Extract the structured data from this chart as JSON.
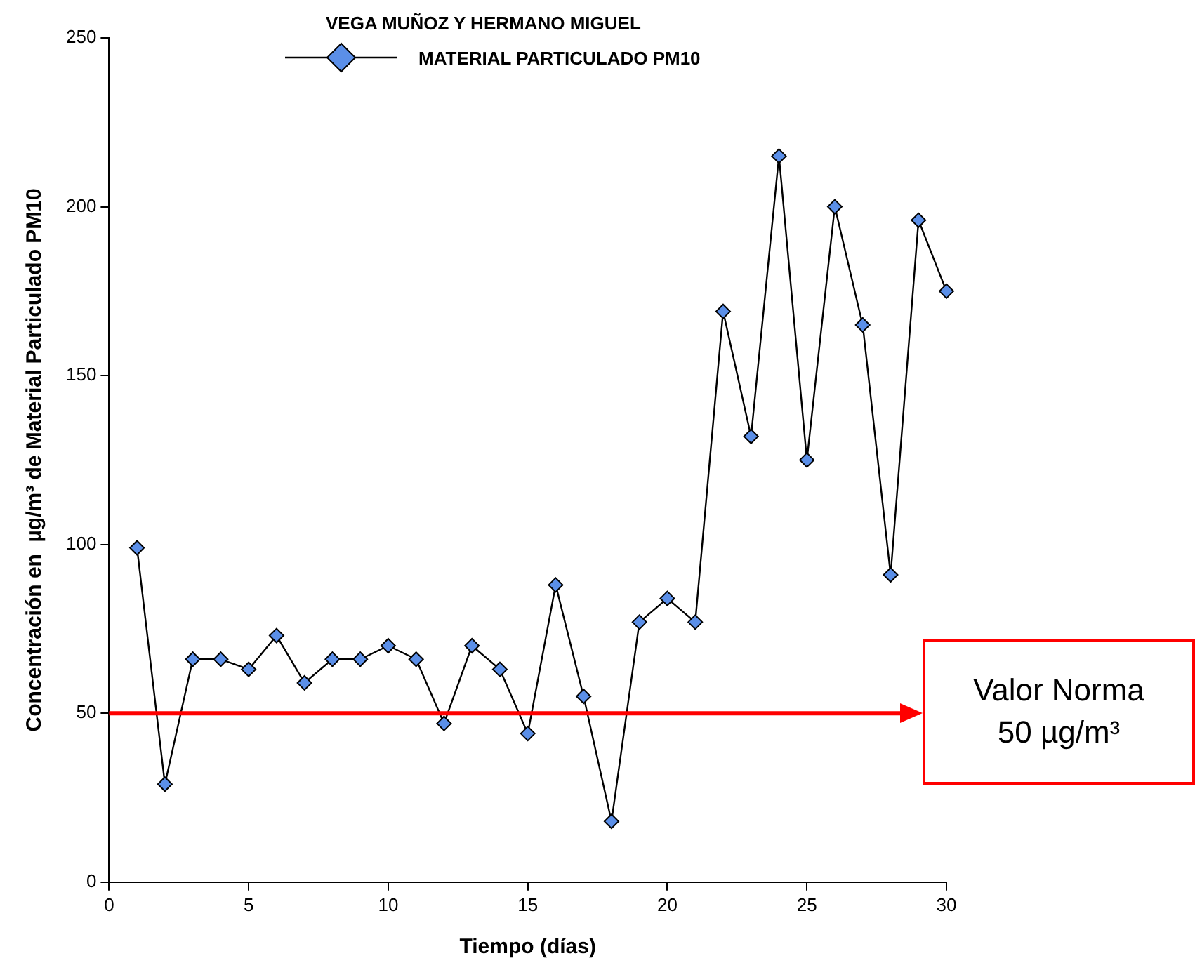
{
  "chart_data": {
    "type": "line",
    "title": "VEGA MUÑOZ Y  HERMANO MIGUEL",
    "xlabel": "Tiempo (días)",
    "ylabel": "Concentración en  µg/m³ de Material Particulado PM10",
    "x": [
      1,
      2,
      3,
      4,
      5,
      6,
      7,
      8,
      9,
      10,
      11,
      12,
      13,
      14,
      15,
      16,
      17,
      18,
      19,
      20,
      21,
      22,
      23,
      24,
      25,
      26,
      27,
      28,
      29,
      30
    ],
    "series": [
      {
        "name": "MATERIAL PARTICULADO PM10",
        "color": "#5b8fe8",
        "values": [
          99,
          29,
          66,
          66,
          63,
          73,
          59,
          66,
          66,
          70,
          66,
          47,
          70,
          63,
          44,
          88,
          55,
          18,
          77,
          84,
          77,
          169,
          132,
          215,
          125,
          200,
          165,
          91,
          196,
          175
        ]
      }
    ],
    "xlim": [
      0,
      30
    ],
    "xticks": [
      0,
      5,
      10,
      15,
      20,
      25,
      30
    ],
    "ylim": [
      0,
      250
    ],
    "yticks": [
      0,
      50,
      100,
      150,
      200,
      250
    ],
    "grid": false,
    "legend": "top",
    "marker": "diamond",
    "line_style": "solid",
    "ref_lines": [
      {
        "axis": "y",
        "value": 50,
        "label": "Valor Norma\n50 µg/m³",
        "color": "#ff0000"
      }
    ]
  }
}
